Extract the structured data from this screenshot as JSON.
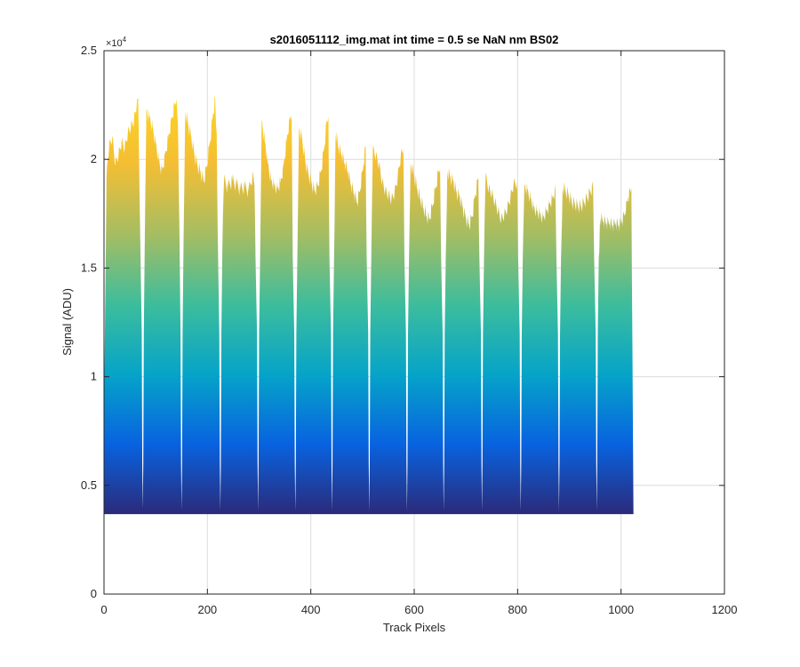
{
  "chart_data": {
    "type": "area",
    "title": "s2016051112_img.mat int time = 0.5 se  NaN nm BS02",
    "xlabel": "Track Pixels",
    "ylabel": "Signal (ADU)",
    "xlim": [
      0,
      1200
    ],
    "ylim": [
      0,
      25000
    ],
    "x_ticks": [
      0,
      200,
      400,
      600,
      800,
      1000,
      1200
    ],
    "y_ticks": [
      0,
      5000,
      10000,
      15000,
      20000,
      25000
    ],
    "x_tick_labels": [
      "0",
      "200",
      "400",
      "600",
      "800",
      "1000",
      "1200"
    ],
    "y_tick_labels": [
      "0",
      "0.5",
      "1",
      "1.5",
      "2",
      "2.5"
    ],
    "y_exponent_label": "×10",
    "y_exponent_power": "4",
    "grid": true,
    "colormap": [
      "#2b2a7a",
      "#0863e0",
      "#06a4c8",
      "#3dbd9c",
      "#a6bd62",
      "#f3be34",
      "#fdd521"
    ],
    "baseline": 3700,
    "x_end": 1024,
    "notches": [
      {
        "x": 75,
        "min": 3900
      },
      {
        "x": 150,
        "min": 3850
      },
      {
        "x": 225,
        "min": 3800
      },
      {
        "x": 298,
        "min": 3800
      },
      {
        "x": 370,
        "min": 3800
      },
      {
        "x": 441,
        "min": 3800
      },
      {
        "x": 513,
        "min": 3800
      },
      {
        "x": 586,
        "min": 3800
      },
      {
        "x": 657,
        "min": 3800
      },
      {
        "x": 731,
        "min": 3800
      },
      {
        "x": 806,
        "min": 3800
      },
      {
        "x": 880,
        "min": 3800
      },
      {
        "x": 953,
        "min": 3800
      }
    ],
    "segments": [
      {
        "start": 0,
        "end": 71,
        "x": [
          0,
          5,
          10,
          16,
          22,
          28,
          34,
          40,
          46,
          52,
          58,
          63,
          66,
          70
        ],
        "y": [
          8000,
          19200,
          20600,
          21000,
          19800,
          20200,
          20800,
          20500,
          21200,
          21500,
          21800,
          22400,
          22800,
          16500
        ]
      },
      {
        "start": 79,
        "end": 147,
        "x": [
          79,
          82,
          88,
          94,
          100,
          106,
          112,
          118,
          124,
          130,
          136,
          140,
          143,
          146
        ],
        "y": [
          16500,
          22300,
          22000,
          21500,
          20800,
          20000,
          19500,
          20200,
          21000,
          21800,
          22500,
          22800,
          21700,
          16500
        ]
      },
      {
        "start": 154,
        "end": 221,
        "x": [
          154,
          157,
          163,
          169,
          175,
          181,
          187,
          193,
          199,
          205,
          211,
          215,
          218,
          220
        ],
        "y": [
          16500,
          22200,
          21600,
          21000,
          20200,
          19700,
          19400,
          19000,
          19700,
          20800,
          22100,
          22800,
          21200,
          16500
        ]
      },
      {
        "start": 229,
        "end": 294,
        "x": [
          229,
          232,
          240,
          248,
          256,
          264,
          272,
          280,
          287,
          291,
          293
        ],
        "y": [
          16000,
          19000,
          18700,
          19000,
          18800,
          18600,
          18700,
          18500,
          19200,
          18800,
          15500
        ]
      },
      {
        "start": 302,
        "end": 366,
        "x": [
          302,
          305,
          311,
          317,
          323,
          329,
          335,
          341,
          347,
          353,
          359,
          363,
          365
        ],
        "y": [
          15500,
          21800,
          20800,
          19800,
          19000,
          18800,
          18600,
          18900,
          19600,
          20800,
          21800,
          22000,
          15500
        ]
      },
      {
        "start": 374,
        "end": 437,
        "x": [
          374,
          377,
          383,
          389,
          395,
          401,
          407,
          413,
          419,
          425,
          431,
          434,
          436
        ],
        "y": [
          15500,
          21500,
          21000,
          20000,
          19400,
          19000,
          18600,
          18800,
          19400,
          20400,
          21800,
          22000,
          15500
        ]
      },
      {
        "start": 445,
        "end": 509,
        "x": [
          445,
          448,
          454,
          460,
          466,
          472,
          478,
          484,
          490,
          496,
          502,
          506,
          508
        ],
        "y": [
          15500,
          21200,
          20500,
          20200,
          19800,
          19400,
          18800,
          18400,
          18000,
          18700,
          19800,
          20600,
          15500
        ]
      },
      {
        "start": 517,
        "end": 582,
        "x": [
          517,
          520,
          526,
          532,
          538,
          544,
          550,
          556,
          562,
          568,
          574,
          579,
          581
        ],
        "y": [
          15500,
          20500,
          20200,
          19800,
          19000,
          18600,
          18400,
          18200,
          18500,
          19200,
          20200,
          20500,
          15500
        ]
      },
      {
        "start": 590,
        "end": 653,
        "x": [
          590,
          593,
          599,
          605,
          611,
          617,
          623,
          629,
          635,
          641,
          647,
          650,
          652
        ],
        "y": [
          15500,
          19800,
          19300,
          18700,
          18200,
          17800,
          17400,
          17200,
          17800,
          18600,
          19400,
          19600,
          15500
        ]
      },
      {
        "start": 661,
        "end": 727,
        "x": [
          661,
          664,
          670,
          676,
          682,
          688,
          694,
          700,
          706,
          712,
          718,
          724,
          726
        ],
        "y": [
          15500,
          19500,
          19200,
          19000,
          18500,
          18300,
          17800,
          17300,
          17000,
          17400,
          18400,
          19200,
          15500
        ]
      },
      {
        "start": 735,
        "end": 802,
        "x": [
          735,
          738,
          744,
          750,
          756,
          762,
          768,
          774,
          780,
          786,
          792,
          799,
          801
        ],
        "y": [
          15500,
          19200,
          18600,
          18400,
          18000,
          17600,
          17200,
          17400,
          17700,
          18200,
          18800,
          19000,
          15500
        ]
      },
      {
        "start": 810,
        "end": 876,
        "x": [
          810,
          813,
          819,
          825,
          831,
          837,
          843,
          849,
          855,
          861,
          867,
          873,
          875
        ],
        "y": [
          15500,
          18800,
          18600,
          18200,
          17800,
          17600,
          17500,
          17300,
          17600,
          17900,
          18200,
          18600,
          15500
        ]
      },
      {
        "start": 884,
        "end": 949,
        "x": [
          884,
          887,
          893,
          899,
          905,
          911,
          917,
          923,
          929,
          935,
          941,
          946,
          948
        ],
        "y": [
          15500,
          18700,
          18500,
          18300,
          18000,
          17900,
          17800,
          17800,
          18000,
          18200,
          18500,
          18700,
          15500
        ]
      },
      {
        "start": 957,
        "end": 1024,
        "x": [
          957,
          960,
          966,
          972,
          978,
          984,
          990,
          996,
          1002,
          1008,
          1014,
          1020,
          1024
        ],
        "y": [
          15500,
          17300,
          17200,
          17100,
          17100,
          17000,
          17100,
          17000,
          17200,
          17600,
          18300,
          18700,
          3700
        ]
      }
    ]
  }
}
